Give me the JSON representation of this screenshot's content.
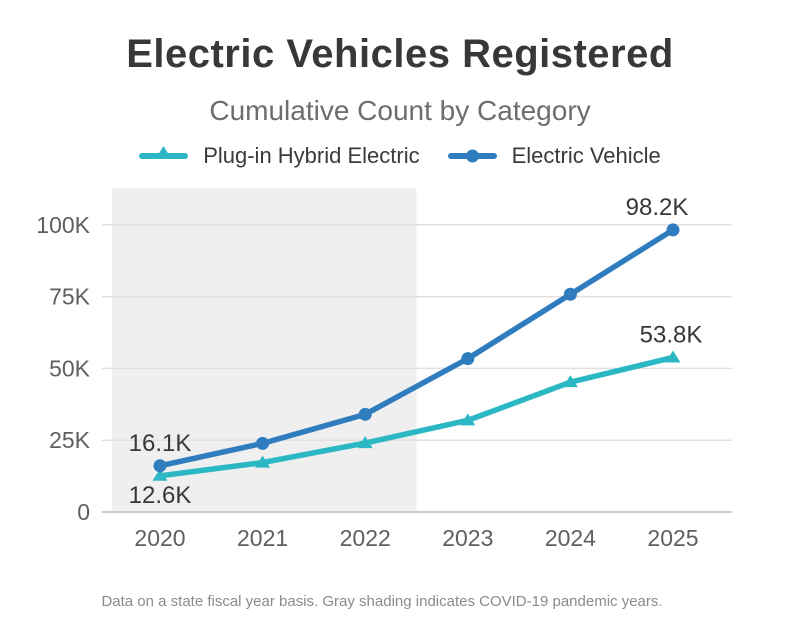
{
  "chart_data": {
    "type": "line",
    "title": "Electric Vehicles Registered",
    "subtitle": "Cumulative Count by Category",
    "footnote": "Data on a state fiscal year basis. Gray shading indicates COVID-19 pandemic years.",
    "x": [
      "2020",
      "2021",
      "2022",
      "2023",
      "2024",
      "2025"
    ],
    "series": [
      {
        "name": "Plug-in Hybrid Electric",
        "marker": "triangle",
        "color": "#2bb8c4",
        "values": [
          12600,
          17200,
          24000,
          31900,
          45200,
          53800
        ]
      },
      {
        "name": "Electric Vehicle",
        "marker": "circle",
        "color": "#2f7dbe",
        "values": [
          16100,
          23900,
          34000,
          53400,
          75800,
          98200
        ]
      }
    ],
    "point_labels": [
      {
        "series": 1,
        "point": 0,
        "text": "16.1K",
        "placement": "above"
      },
      {
        "series": 0,
        "point": 0,
        "text": "12.6K",
        "placement": "below"
      },
      {
        "series": 1,
        "point": 5,
        "text": "98.2K",
        "placement": "above"
      },
      {
        "series": 0,
        "point": 5,
        "text": "53.8K",
        "placement": "above"
      }
    ],
    "yticks": [
      {
        "value": 0,
        "label": "0"
      },
      {
        "value": 25000,
        "label": "25K"
      },
      {
        "value": 50000,
        "label": "50K"
      },
      {
        "value": 75000,
        "label": "75K"
      },
      {
        "value": 100000,
        "label": "100K"
      }
    ],
    "ylim": [
      0,
      112800
    ],
    "grid": "horizontal",
    "legend_position": "top",
    "shaded_region": {
      "from_year": "2020",
      "to_year": "2022",
      "color": "#efefef",
      "meaning": "COVID-19 pandemic years"
    },
    "colors": {
      "title": "#383838",
      "subtitle": "#6d6d6d",
      "tick_label": "#5f5f5f",
      "point_label": "#383838",
      "grid": "#e0e0e0",
      "axis_line": "#cccccc",
      "footnote": "#8b8b8b",
      "background": "#ffffff"
    }
  }
}
